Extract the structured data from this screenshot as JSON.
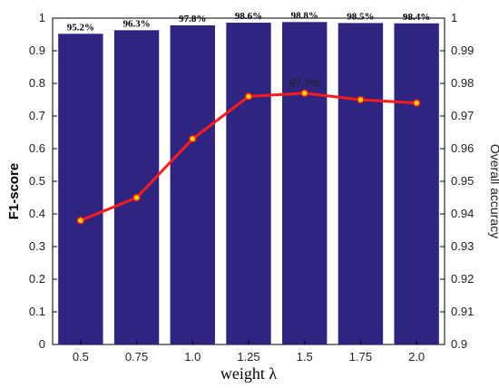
{
  "chart_data": {
    "type": "bar",
    "categories": [
      "0.5",
      "0.75",
      "1.0",
      "1.25",
      "1.5",
      "1.75",
      "2.0"
    ],
    "xlabel": "weight λ",
    "ylabel": "F1-score",
    "ylim": [
      0,
      1
    ],
    "y_ticks": [
      "0",
      "0.1",
      "0.2",
      "0.3",
      "0.4",
      "0.5",
      "0.6",
      "0.7",
      "0.8",
      "0.9",
      "1"
    ],
    "y2label": "Overall accuracy",
    "y2lim": [
      0.9,
      1.0
    ],
    "y2_ticks": [
      "0.9",
      "0.91",
      "0.92",
      "0.93",
      "0.94",
      "0.95",
      "0.96",
      "0.97",
      "0.98",
      "0.99",
      "1"
    ],
    "bar_values": [
      0.952,
      0.963,
      0.978,
      0.986,
      0.988,
      0.985,
      0.984
    ],
    "bar_labels": [
      "95.2%",
      "96.3%",
      "97.8%",
      "98.6%",
      "98.8%",
      "98.5%",
      "98.4%"
    ],
    "line_values": [
      0.938,
      0.945,
      0.963,
      0.976,
      0.977,
      0.975,
      0.974
    ],
    "annotation": {
      "index": 4,
      "text": "97.7%"
    },
    "colors": {
      "bar_fill": "#2e2580",
      "line": "#ff1a1a",
      "marker_fill": "#ffd700",
      "axis": "#000000"
    },
    "grid": false
  }
}
